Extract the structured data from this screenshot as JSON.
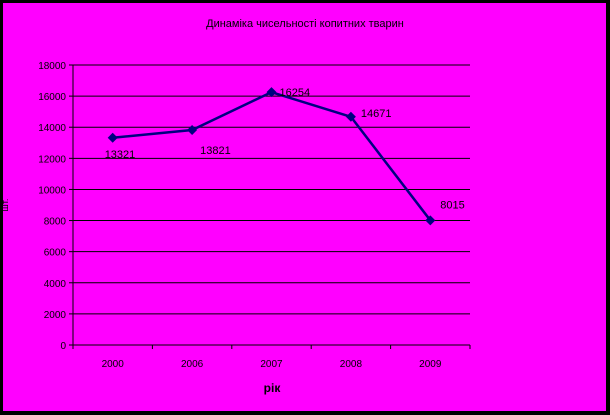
{
  "chart_data": {
    "type": "line",
    "title": "Динаміка чисельності копитних тварин",
    "xlabel": "рік",
    "ylabel": "шт.",
    "categories": [
      "2000",
      "2006",
      "2007",
      "2008",
      "2009"
    ],
    "series": [
      {
        "values": [
          13321,
          13821,
          16254,
          14671,
          8015
        ],
        "labels": [
          "13321",
          "13821",
          "16254",
          "14671",
          "8015"
        ]
      }
    ],
    "ylim": [
      0,
      18000
    ],
    "yticks": [
      0,
      2000,
      4000,
      6000,
      8000,
      10000,
      12000,
      14000,
      16000,
      18000
    ],
    "grid": true,
    "colors": {
      "background": "#ff00ff",
      "line": "#000080",
      "grid": "#000000"
    }
  }
}
